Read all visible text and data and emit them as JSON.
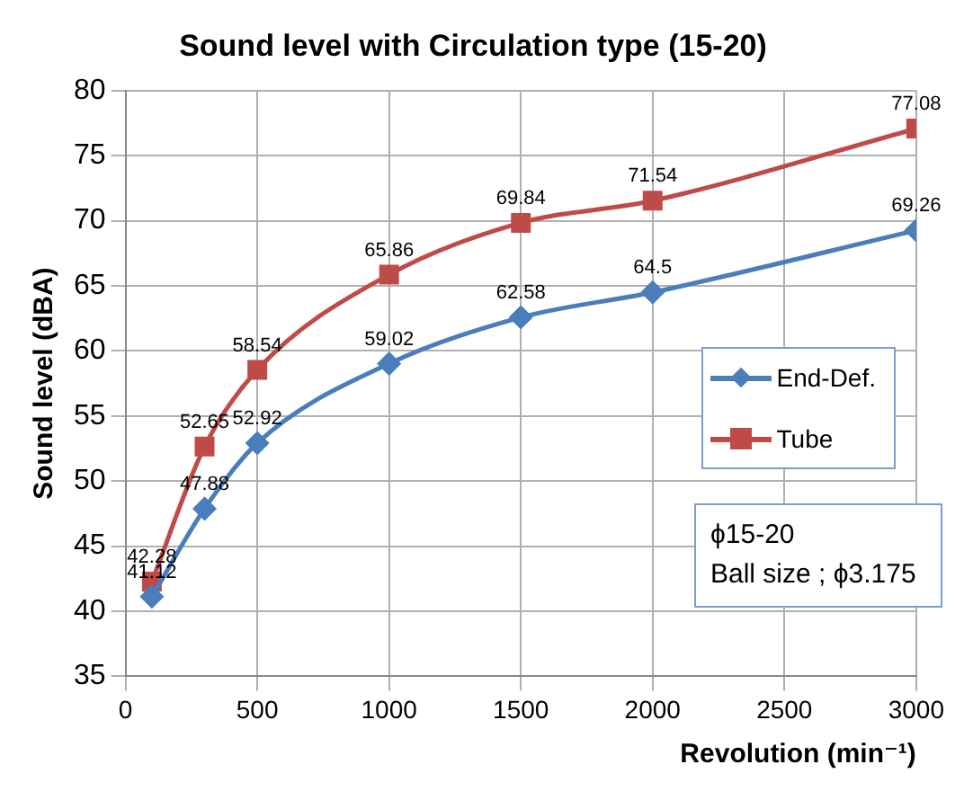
{
  "chart_data": {
    "type": "line",
    "title": "Sound level with Circulation type (15-20)",
    "xlabel": "Revolution (min⁻¹)",
    "ylabel": "Sound level (dBA)",
    "x": [
      100,
      300,
      500,
      1000,
      1500,
      2000,
      3000
    ],
    "series": [
      {
        "name": "End-Def.",
        "color": "#4a7ebb",
        "marker": "diamond",
        "values": [
          41.12,
          47.88,
          52.92,
          59.02,
          62.58,
          64.5,
          69.26
        ]
      },
      {
        "name": "Tube",
        "color": "#be4b48",
        "marker": "square",
        "values": [
          42.28,
          52.65,
          58.54,
          65.86,
          69.84,
          71.54,
          77.08
        ]
      }
    ],
    "xlim": [
      0,
      3000
    ],
    "xticks": [
      0,
      500,
      1000,
      1500,
      2000,
      2500,
      3000
    ],
    "ylim": [
      35,
      80
    ],
    "yticks": [
      35,
      40,
      45,
      50,
      55,
      60,
      65,
      70,
      75,
      80
    ],
    "grid": true,
    "legend": "right",
    "data_labels": true,
    "annotations": [
      "ϕ15-20",
      "Ball size ; ϕ3.175"
    ]
  }
}
